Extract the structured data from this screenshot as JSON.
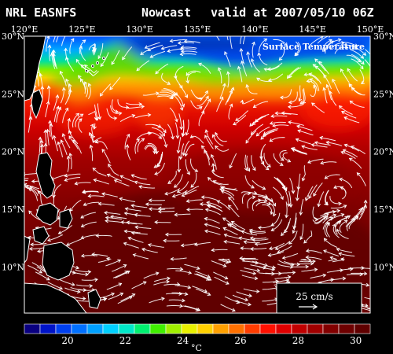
{
  "header": {
    "agency": "NRL EASNFS",
    "product": "Nowcast",
    "valid": "valid at 2007/05/10 06Z"
  },
  "map": {
    "field_title": "Surface Temperature",
    "lon_labels": [
      "120°E",
      "125°E",
      "130°E",
      "135°E",
      "140°E",
      "145°E",
      "150°E"
    ],
    "lat_labels_left": [
      "30°N",
      "25°N",
      "20°N",
      "15°N",
      "10°N"
    ],
    "lat_labels_right": [
      "30°N",
      "25°N",
      "20°N",
      "15°N",
      "10°N"
    ],
    "lon_range": [
      120,
      150
    ],
    "lat_range": [
      6,
      30
    ],
    "ocean_dark_color": "#6e0000",
    "land_color": "#000000",
    "vector_color": "#ffffff"
  },
  "legend": {
    "vector_scale_label": "25 cm/s"
  },
  "colorbar": {
    "unit": "°C",
    "tick_labels": [
      "20",
      "22",
      "24",
      "26",
      "28",
      "30"
    ],
    "range": [
      18.5,
      30.5
    ],
    "colors": [
      "#0a0080",
      "#0014c8",
      "#0040f0",
      "#0070ff",
      "#00a0ff",
      "#00d0ff",
      "#00e8c8",
      "#00f070",
      "#40f000",
      "#a0f000",
      "#e8f000",
      "#ffd000",
      "#ffa000",
      "#ff7000",
      "#ff3c00",
      "#ff1000",
      "#e00000",
      "#c00000",
      "#a00000",
      "#820000",
      "#6e0000",
      "#600000"
    ]
  }
}
